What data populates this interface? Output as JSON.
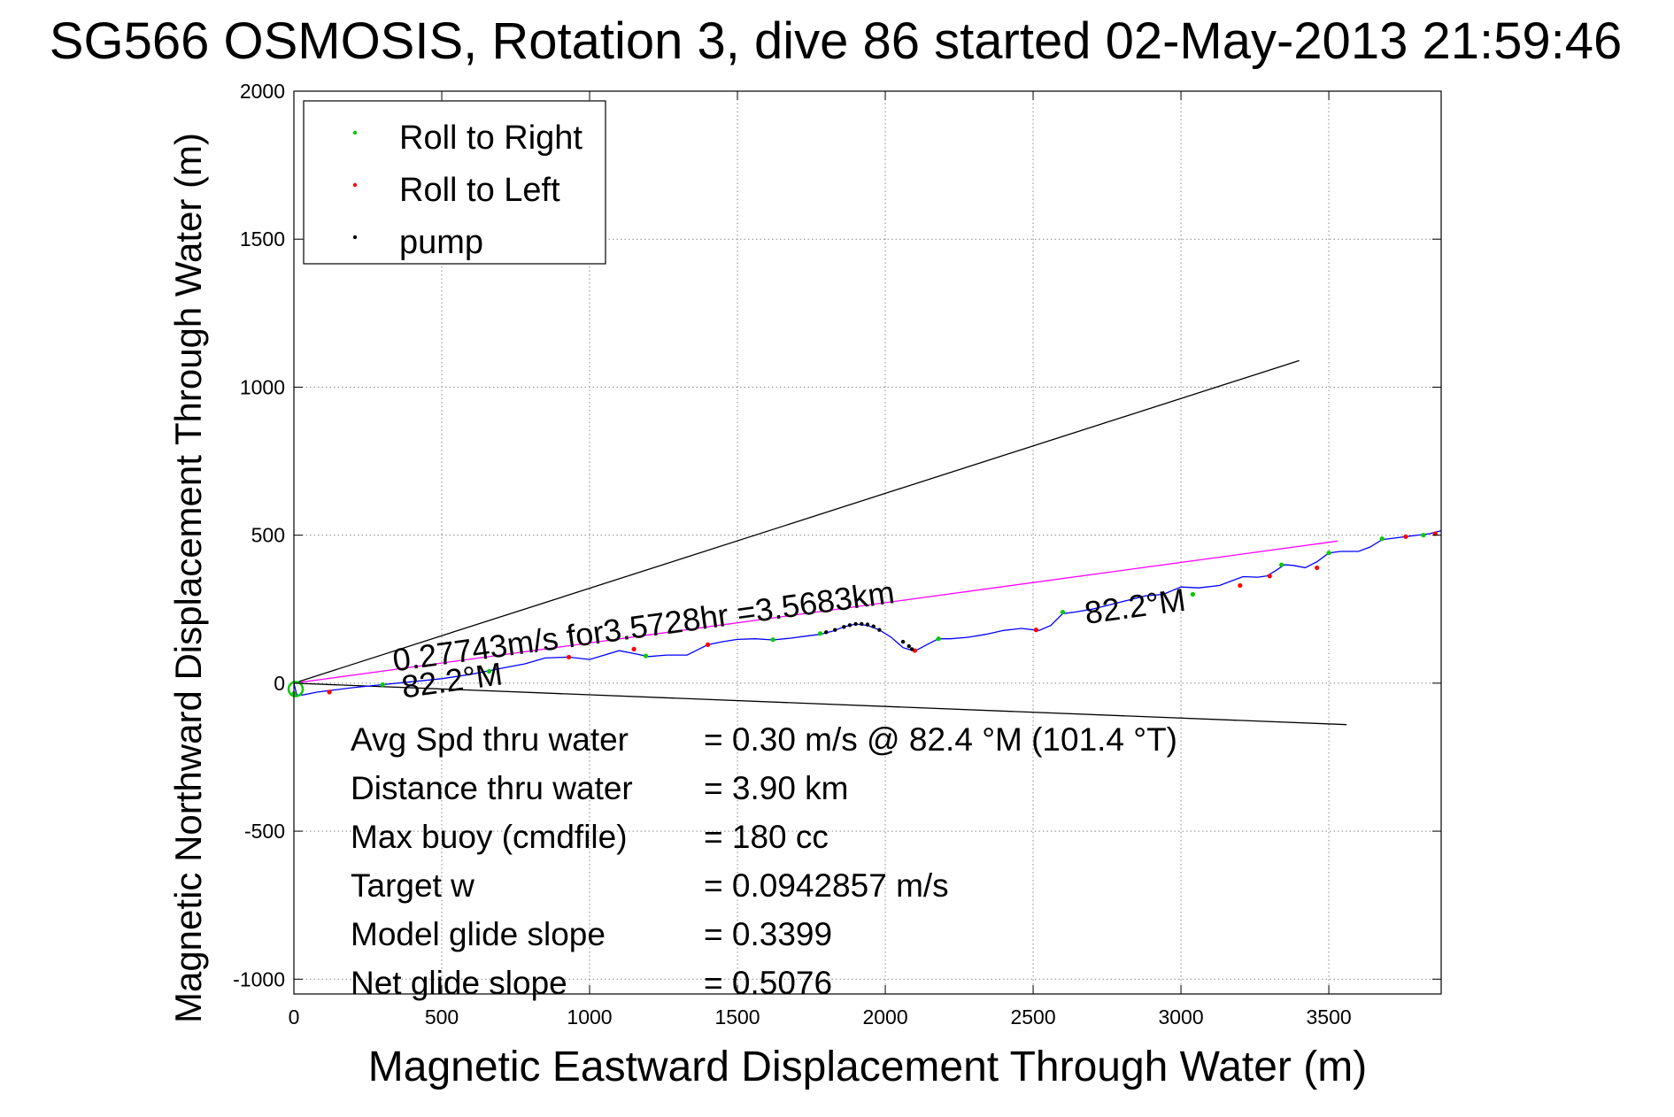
{
  "chart_data": {
    "type": "line",
    "title": "SG566 OSMOSIS, Rotation 3, dive 86 started 02-May-2013 21:59:46",
    "xlabel": "Magnetic Eastward Displacement Through Water (m)",
    "ylabel": "Magnetic Northward Displacement Through Water (m)",
    "xlim": [
      0,
      3880
    ],
    "ylim": [
      -1050,
      2000
    ],
    "xticks": [
      0,
      500,
      1000,
      1500,
      2000,
      2500,
      3000,
      3500
    ],
    "yticks": [
      2000,
      1500,
      1000,
      500,
      0,
      -500,
      -1000
    ],
    "grid": true,
    "legend_position": "top-left",
    "legend": [
      {
        "label": "Roll to Right",
        "color": "#00cc00"
      },
      {
        "label": "Roll to Left",
        "color": "#ff0000"
      },
      {
        "label": "pump",
        "color": "#000000"
      }
    ],
    "track": {
      "color": "#0000ff",
      "x": [
        0,
        10,
        30,
        80,
        120,
        200,
        300,
        400,
        500,
        600,
        700,
        780,
        850,
        930,
        1000,
        1050,
        1100,
        1150,
        1200,
        1260,
        1330,
        1360,
        1400,
        1450,
        1500,
        1560,
        1620,
        1680,
        1740,
        1780,
        1820,
        1860,
        1900,
        1940,
        1980,
        2020,
        2060,
        2100,
        2140,
        2180,
        2220,
        2280,
        2340,
        2400,
        2460,
        2520,
        2560,
        2600,
        2640,
        2700,
        2760,
        2820,
        2880,
        2940,
        3000,
        3060,
        3130,
        3170,
        3210,
        3260,
        3290,
        3320,
        3350,
        3380,
        3420,
        3460,
        3500,
        3540,
        3600,
        3640,
        3680,
        3720,
        3760,
        3800,
        3840,
        3880
      ],
      "y": [
        0,
        -40,
        -40,
        -30,
        -25,
        -15,
        -5,
        5,
        15,
        30,
        50,
        65,
        85,
        88,
        80,
        95,
        110,
        100,
        90,
        95,
        95,
        110,
        130,
        140,
        148,
        150,
        146,
        152,
        160,
        165,
        175,
        190,
        200,
        195,
        180,
        155,
        120,
        108,
        130,
        150,
        150,
        155,
        165,
        178,
        185,
        178,
        195,
        235,
        240,
        250,
        265,
        280,
        295,
        300,
        325,
        322,
        330,
        345,
        360,
        358,
        362,
        380,
        400,
        398,
        390,
        410,
        440,
        445,
        445,
        460,
        485,
        490,
        495,
        500,
        505,
        515
      ]
    },
    "roll_right_points": {
      "color": "#00cc00",
      "x": [
        0,
        300,
        660,
        1190,
        1620,
        1780,
        2180,
        2600,
        3040,
        3340,
        3500,
        3680,
        3820
      ],
      "y": [
        -35,
        -5,
        40,
        92,
        147,
        168,
        150,
        240,
        300,
        400,
        440,
        488,
        500
      ]
    },
    "roll_left_points": {
      "color": "#ff0000",
      "x": [
        120,
        930,
        1150,
        1400,
        2100,
        2510,
        3200,
        3300,
        3460,
        3760,
        3860
      ],
      "y": [
        -30,
        88,
        115,
        130,
        110,
        180,
        330,
        362,
        390,
        495,
        505
      ]
    },
    "pump_points": {
      "color": "#000000",
      "x": [
        1800,
        1830,
        1860,
        1880,
        1900,
        1920,
        1940,
        1960,
        1980,
        2060,
        2080,
        2090
      ],
      "y": [
        172,
        180,
        190,
        196,
        200,
        200,
        198,
        192,
        180,
        140,
        125,
        115
      ]
    },
    "reference_lines": [
      {
        "color": "#000000",
        "x": [
          0,
          3400
        ],
        "y": [
          0,
          1090
        ]
      },
      {
        "color": "#000000",
        "x": [
          0,
          3560
        ],
        "y": [
          0,
          -140
        ]
      },
      {
        "color": "#ff00ff",
        "x": [
          0,
          3530
        ],
        "y": [
          0,
          480
        ]
      }
    ],
    "annotations": [
      {
        "text": "0.27743m/s for3.5728hr =3.5683km",
        "x": 340,
        "y": 40,
        "rotation": -7.8
      },
      {
        "text": "82.2°M",
        "x": 2680,
        "y": 200,
        "rotation": -7.8
      },
      {
        "text": "82.2°M",
        "x": 370,
        "y": -50,
        "rotation": -7.8
      }
    ],
    "stats": [
      {
        "label": "Avg Spd thru water",
        "value": "=  0.30 m/s @  82.4 °M (101.4 °T)"
      },
      {
        "label": "Distance thru water",
        "value": "=  3.90 km"
      },
      {
        "label": "Max buoy (cmdfile)",
        "value": "= 180 cc"
      },
      {
        "label": "Target w",
        "value": "= 0.0942857 m/s"
      },
      {
        "label": "Model glide slope",
        "value": "= 0.3399"
      },
      {
        "label": "Net glide slope",
        "value": "= 0.5076"
      }
    ]
  }
}
